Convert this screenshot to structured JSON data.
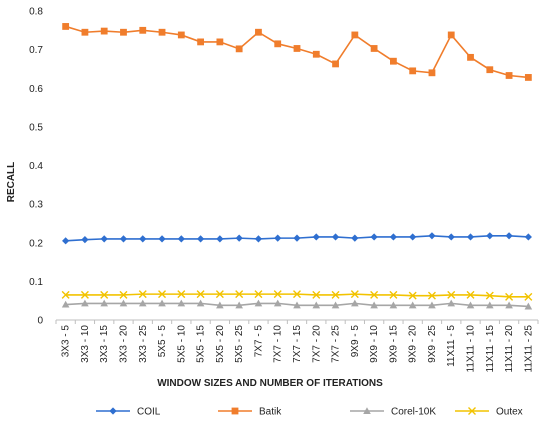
{
  "chart_data": {
    "type": "line",
    "title": "",
    "xlabel": "WINDOW SIZES AND NUMBER OF ITERATIONS",
    "ylabel": "RECALL",
    "ylim": [
      0,
      0.8
    ],
    "yticks": [
      0,
      0.1,
      0.2,
      0.3,
      0.4,
      0.5,
      0.6,
      0.7,
      0.8
    ],
    "ytick_labels": [
      "0",
      "0.1",
      "0.2",
      "0.3",
      "0.4",
      "0.5",
      "0.6",
      "0.7",
      "0.8"
    ],
    "grid": false,
    "legend_position": "bottom",
    "categories": [
      "3X3 - 5",
      "3X3 - 10",
      "3X3 - 15",
      "3X3 - 20",
      "3X3 - 25",
      "5X5 - 5",
      "5X5 - 10",
      "5X5 - 15",
      "5X5 - 20",
      "5X5 - 25",
      "7X7 - 5",
      "7X7 - 10",
      "7X7 - 15",
      "7X7 - 20",
      "7X7 - 25",
      "9X9 - 5",
      "9X9 - 10",
      "9X9 - 15",
      "9X9 - 20",
      "9X9 - 25",
      "11X11 - 5",
      "11X11 - 10",
      "11X11 - 15",
      "11X11 - 20",
      "11X11 - 25"
    ],
    "series": [
      {
        "name": "COIL",
        "color": "#2f6fd0",
        "marker": "diamond",
        "values": [
          0.205,
          0.208,
          0.21,
          0.21,
          0.21,
          0.21,
          0.21,
          0.21,
          0.21,
          0.212,
          0.21,
          0.212,
          0.212,
          0.215,
          0.215,
          0.212,
          0.215,
          0.215,
          0.215,
          0.218,
          0.215,
          0.215,
          0.218,
          0.218,
          0.215
        ]
      },
      {
        "name": "Batik",
        "color": "#f07d2c",
        "marker": "square",
        "values": [
          0.76,
          0.745,
          0.748,
          0.745,
          0.75,
          0.745,
          0.738,
          0.72,
          0.72,
          0.702,
          0.745,
          0.715,
          0.703,
          0.688,
          0.663,
          0.738,
          0.703,
          0.67,
          0.645,
          0.64,
          0.738,
          0.68,
          0.648,
          0.633,
          0.628
        ]
      },
      {
        "name": "Corel-10K",
        "color": "#a6a6a6",
        "marker": "triangle",
        "values": [
          0.04,
          0.043,
          0.043,
          0.043,
          0.043,
          0.043,
          0.043,
          0.043,
          0.038,
          0.038,
          0.043,
          0.043,
          0.038,
          0.038,
          0.038,
          0.043,
          0.038,
          0.038,
          0.038,
          0.038,
          0.043,
          0.038,
          0.038,
          0.038,
          0.035
        ]
      },
      {
        "name": "Outex",
        "color": "#f2c300",
        "marker": "x",
        "values": [
          0.065,
          0.065,
          0.065,
          0.065,
          0.067,
          0.067,
          0.067,
          0.067,
          0.067,
          0.067,
          0.067,
          0.067,
          0.067,
          0.065,
          0.065,
          0.067,
          0.065,
          0.065,
          0.063,
          0.063,
          0.065,
          0.065,
          0.063,
          0.06,
          0.06
        ]
      }
    ]
  }
}
